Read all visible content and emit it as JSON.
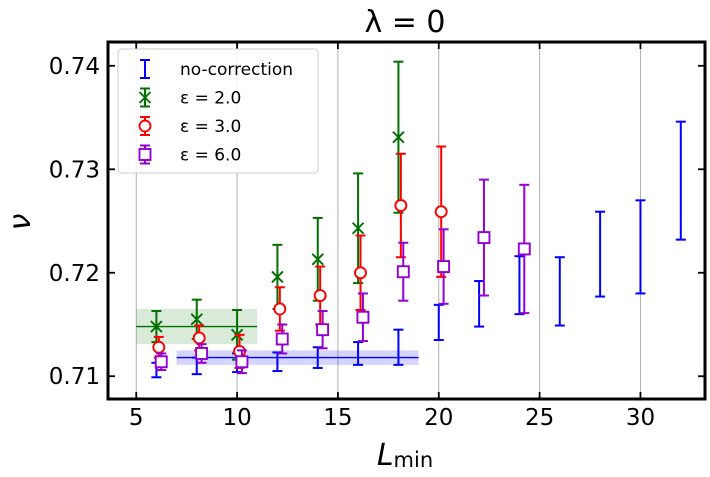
{
  "chart_data": {
    "type": "errorbar",
    "title": "λ = 0",
    "ylabel": "ν",
    "xlabel_main": "L",
    "xlabel_sub": "min",
    "xlim": [
      3.6,
      33.2
    ],
    "ylim": [
      0.7078,
      0.7423
    ],
    "xticks": [
      5,
      10,
      15,
      20,
      25,
      30
    ],
    "yticks": [
      0.71,
      0.72,
      0.73,
      0.74
    ],
    "ytick_labels": [
      "0.71",
      "0.72",
      "0.73",
      "0.74"
    ],
    "grid": "vertical",
    "legend_position": "top-left",
    "series": [
      {
        "name": "no-correction",
        "color": "#0000ff",
        "marker": "none",
        "points": [
          {
            "x": 6,
            "y": 0.7106,
            "err": 0.0007
          },
          {
            "x": 8,
            "y": 0.711,
            "err": 0.0008
          },
          {
            "x": 10,
            "y": 0.7113,
            "err": 0.0009
          },
          {
            "x": 12,
            "y": 0.7114,
            "err": 0.0009
          },
          {
            "x": 14,
            "y": 0.7118,
            "err": 0.001
          },
          {
            "x": 16,
            "y": 0.7122,
            "err": 0.0011
          },
          {
            "x": 18,
            "y": 0.7128,
            "err": 0.0017
          },
          {
            "x": 20,
            "y": 0.7152,
            "err": 0.0017
          },
          {
            "x": 22,
            "y": 0.717,
            "err": 0.0022
          },
          {
            "x": 24,
            "y": 0.7188,
            "err": 0.0028
          },
          {
            "x": 26,
            "y": 0.7182,
            "err": 0.0033
          },
          {
            "x": 28,
            "y": 0.7218,
            "err": 0.0041
          },
          {
            "x": 30,
            "y": 0.7225,
            "err": 0.0045
          },
          {
            "x": 32,
            "y": 0.7289,
            "err": 0.0057
          }
        ],
        "fit": {
          "x_range": [
            7,
            19
          ],
          "y": 0.7118,
          "err": 0.0007
        }
      },
      {
        "name": "ε = 2.0",
        "color": "#007000",
        "marker": "x",
        "points": [
          {
            "x": 6,
            "y": 0.7148,
            "err": 0.0015
          },
          {
            "x": 8,
            "y": 0.7155,
            "err": 0.0019
          },
          {
            "x": 10,
            "y": 0.714,
            "err": 0.0024
          },
          {
            "x": 12,
            "y": 0.7196,
            "err": 0.0031
          },
          {
            "x": 14,
            "y": 0.7213,
            "err": 0.004
          },
          {
            "x": 16,
            "y": 0.7243,
            "err": 0.0053
          },
          {
            "x": 18,
            "y": 0.7331,
            "err": 0.0073
          }
        ],
        "fit": {
          "x_range": [
            5,
            11
          ],
          "y": 0.7148,
          "err": 0.0017
        }
      },
      {
        "name": "ε = 3.0",
        "color": "#ff0000",
        "marker": "o",
        "points": [
          {
            "x": 6,
            "y": 0.7128,
            "err": 0.001
          },
          {
            "x": 8,
            "y": 0.7137,
            "err": 0.0012
          },
          {
            "x": 10,
            "y": 0.7124,
            "err": 0.0016
          },
          {
            "x": 12,
            "y": 0.7165,
            "err": 0.0021
          },
          {
            "x": 14,
            "y": 0.7178,
            "err": 0.0028
          },
          {
            "x": 16,
            "y": 0.72,
            "err": 0.0036
          },
          {
            "x": 18,
            "y": 0.7265,
            "err": 0.005
          },
          {
            "x": 20,
            "y": 0.7259,
            "err": 0.0063
          }
        ]
      },
      {
        "name": "ε = 6.0",
        "color": "#9400d3",
        "marker": "s",
        "points": [
          {
            "x": 6,
            "y": 0.7114,
            "err": 0.0008
          },
          {
            "x": 8,
            "y": 0.7122,
            "err": 0.0009
          },
          {
            "x": 10,
            "y": 0.7114,
            "err": 0.0011
          },
          {
            "x": 12,
            "y": 0.7136,
            "err": 0.0014
          },
          {
            "x": 14,
            "y": 0.7145,
            "err": 0.0018
          },
          {
            "x": 16,
            "y": 0.7157,
            "err": 0.0023
          },
          {
            "x": 18,
            "y": 0.7201,
            "err": 0.0028
          },
          {
            "x": 20,
            "y": 0.7206,
            "err": 0.0036
          },
          {
            "x": 22,
            "y": 0.7234,
            "err": 0.0056
          },
          {
            "x": 24,
            "y": 0.7223,
            "err": 0.0062
          }
        ]
      }
    ]
  }
}
